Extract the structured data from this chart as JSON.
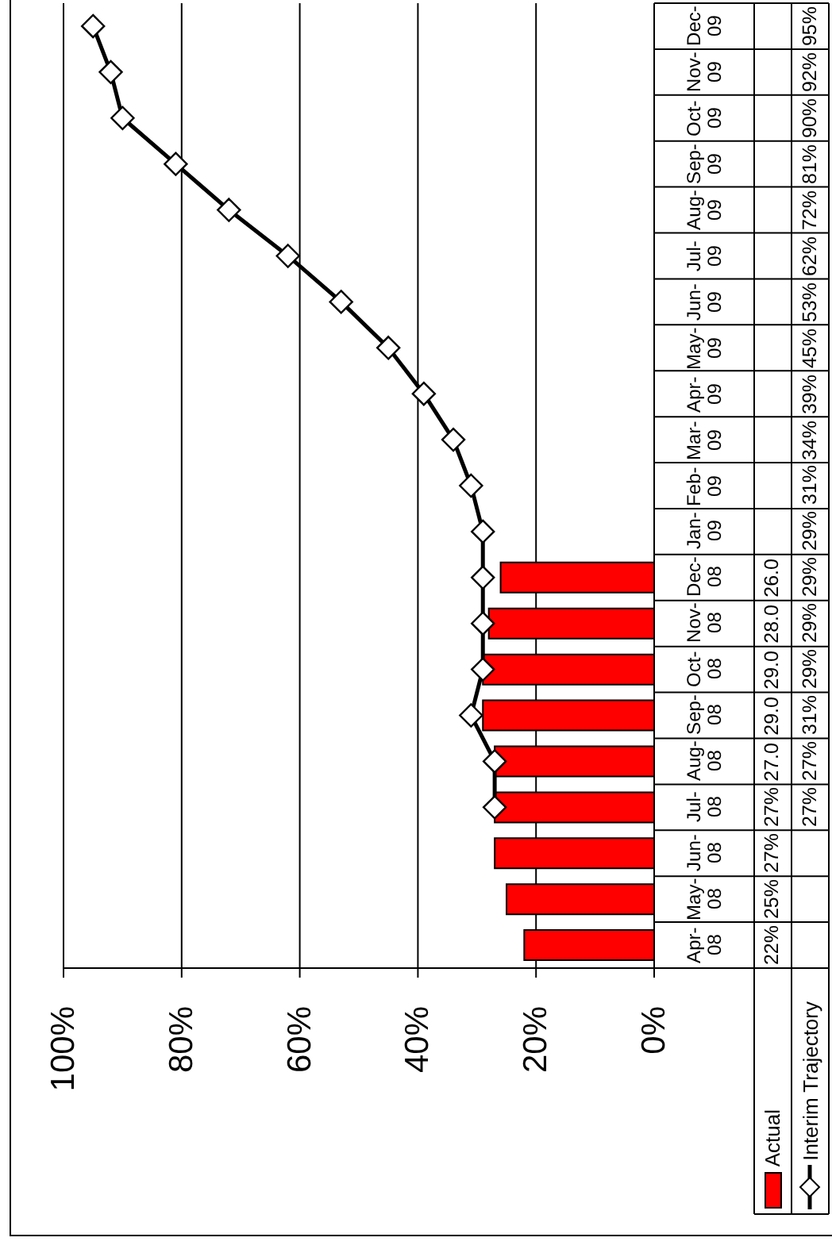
{
  "chart_data": {
    "type": "bar",
    "orientation": "horizontal",
    "categories": [
      "Dec-09",
      "Nov-09",
      "Oct-09",
      "Sep-09",
      "Aug-09",
      "Jul-09",
      "Jun-09",
      "May-09",
      "Apr-09",
      "Mar-09",
      "Feb-09",
      "Jan-09",
      "Dec-08",
      "Nov-08",
      "Oct-08",
      "Sep-08",
      "Aug-08",
      "Jul-08",
      "Jun-08",
      "May-08",
      "Apr-08"
    ],
    "series": [
      {
        "name": "Actual",
        "color": "#ff0000",
        "values": [
          null,
          null,
          null,
          null,
          null,
          null,
          null,
          null,
          null,
          null,
          null,
          null,
          26,
          28,
          29,
          29,
          27,
          27,
          27,
          25,
          22
        ],
        "value_labels": [
          null,
          null,
          null,
          null,
          null,
          null,
          null,
          null,
          null,
          null,
          null,
          null,
          "26.0",
          "28.0",
          "29.0",
          "29.0",
          "27.0",
          "27%",
          "27%",
          "25%",
          "22%"
        ]
      },
      {
        "name": "Interim Trajectory",
        "type": "line",
        "color": "#000000",
        "values": [
          95,
          92,
          90,
          81,
          72,
          62,
          53,
          45,
          39,
          34,
          31,
          29,
          29,
          29,
          29,
          31,
          27,
          27,
          null,
          null,
          null
        ],
        "value_labels": [
          "95%",
          "92%",
          "90%",
          "81%",
          "72%",
          "62%",
          "53%",
          "45%",
          "39%",
          "34%",
          "31%",
          "29%",
          "29%",
          "29%",
          "29%",
          "31%",
          "27%",
          "27%",
          null,
          null,
          null
        ]
      }
    ],
    "xlim": [
      100,
      0
    ],
    "xticks": [
      {
        "value": 100,
        "label": "100%"
      },
      {
        "value": 80,
        "label": "80%"
      },
      {
        "value": 60,
        "label": "60%"
      },
      {
        "value": 40,
        "label": "40%"
      },
      {
        "value": 20,
        "label": "20%"
      },
      {
        "value": 0,
        "label": "0%"
      }
    ],
    "grid": "x",
    "legend": "bottom right",
    "marker": "diamond",
    "line_style": "solid"
  }
}
